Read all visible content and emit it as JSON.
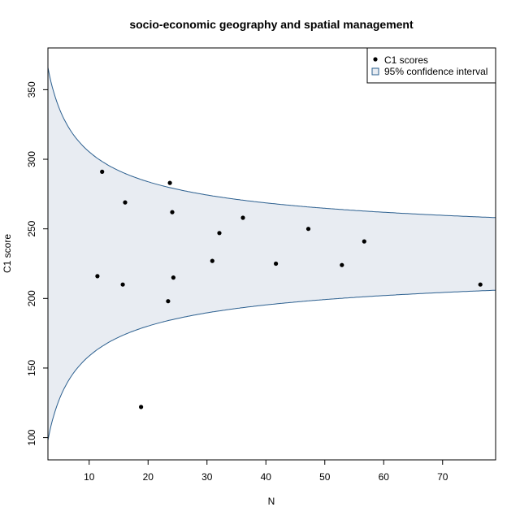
{
  "chart_data": {
    "type": "scatter",
    "title": "socio-economic geography and spatial management",
    "xlabel": "N",
    "ylabel": "C1 score",
    "xlim": [
      3,
      79
    ],
    "ylim": [
      84,
      380
    ],
    "x_ticks": [
      10,
      20,
      30,
      40,
      50,
      60,
      70
    ],
    "y_ticks": [
      100,
      150,
      200,
      250,
      300,
      350
    ],
    "grid": false,
    "legend": {
      "position": "top-right",
      "entries": [
        "C1 scores",
        "95% confidence interval"
      ]
    },
    "series": [
      {
        "name": "C1 scores",
        "points": [
          {
            "x": 11.4,
            "y": 216
          },
          {
            "x": 12.2,
            "y": 291
          },
          {
            "x": 15.7,
            "y": 210
          },
          {
            "x": 16.1,
            "y": 269
          },
          {
            "x": 18.8,
            "y": 122
          },
          {
            "x": 23.4,
            "y": 198
          },
          {
            "x": 23.7,
            "y": 283
          },
          {
            "x": 24.1,
            "y": 262
          },
          {
            "x": 24.3,
            "y": 215
          },
          {
            "x": 30.9,
            "y": 227
          },
          {
            "x": 32.1,
            "y": 247
          },
          {
            "x": 36.1,
            "y": 258
          },
          {
            "x": 41.7,
            "y": 225
          },
          {
            "x": 47.2,
            "y": 250
          },
          {
            "x": 52.9,
            "y": 224
          },
          {
            "x": 56.7,
            "y": 241
          },
          {
            "x": 76.4,
            "y": 210
          }
        ]
      }
    ],
    "confidence_interval": {
      "name": "95% confidence interval",
      "center": 232,
      "coefficient": 2.78,
      "fill_color": "#e8ecf2",
      "line_color": "#2b5f8f"
    },
    "colors": {
      "points": "#000000",
      "band_fill": "#e8ecf2",
      "band_line": "#2b5f8f",
      "legend_square": "#2b5f8f"
    }
  }
}
